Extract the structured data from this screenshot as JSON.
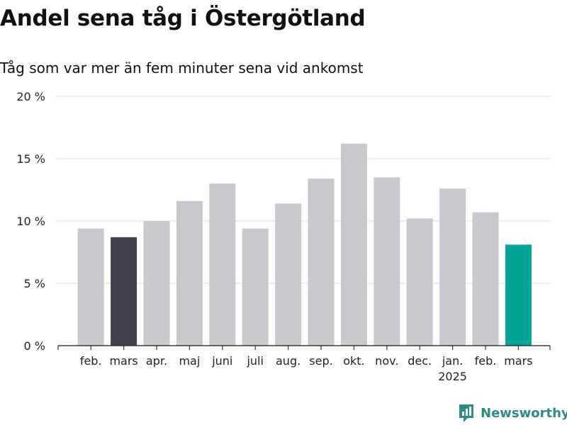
{
  "title": "Andel sena tåg i Östergötland",
  "subtitle": "Tåg som var mer än fem minuter sena vid ankomst",
  "brand": "Newsworthy",
  "colors": {
    "bar_default": "#c9c8cf",
    "bar_reference": "#43414e",
    "bar_current": "#00a397",
    "grid": "#dedede",
    "axis": "#333333",
    "text": "#222222"
  },
  "chart_data": {
    "type": "bar",
    "title": "Andel sena tåg i Östergötland",
    "subtitle": "Tåg som var mer än fem minuter sena vid ankomst",
    "categories": [
      "feb.",
      "mars",
      "apr.",
      "maj",
      "juni",
      "juli",
      "aug.",
      "sep.",
      "okt.",
      "nov.",
      "dec.",
      "jan.",
      "feb.",
      "mars"
    ],
    "category_sublabels": [
      "",
      "",
      "",
      "",
      "",
      "",
      "",
      "",
      "",
      "",
      "",
      "2025",
      "",
      ""
    ],
    "values": [
      9.4,
      8.7,
      10.0,
      11.6,
      13.0,
      9.4,
      11.4,
      13.4,
      16.2,
      13.5,
      10.2,
      12.6,
      10.7,
      8.1
    ],
    "highlights": [
      "default",
      "reference",
      "default",
      "default",
      "default",
      "default",
      "default",
      "default",
      "default",
      "default",
      "default",
      "default",
      "default",
      "current"
    ],
    "yticks": [
      0,
      5,
      10,
      15,
      20
    ],
    "ytick_labels": [
      "0 %",
      "5 %",
      "10 %",
      "15 %",
      "20 %"
    ],
    "ylim": [
      0,
      20
    ],
    "grid": true,
    "legend": "none"
  }
}
